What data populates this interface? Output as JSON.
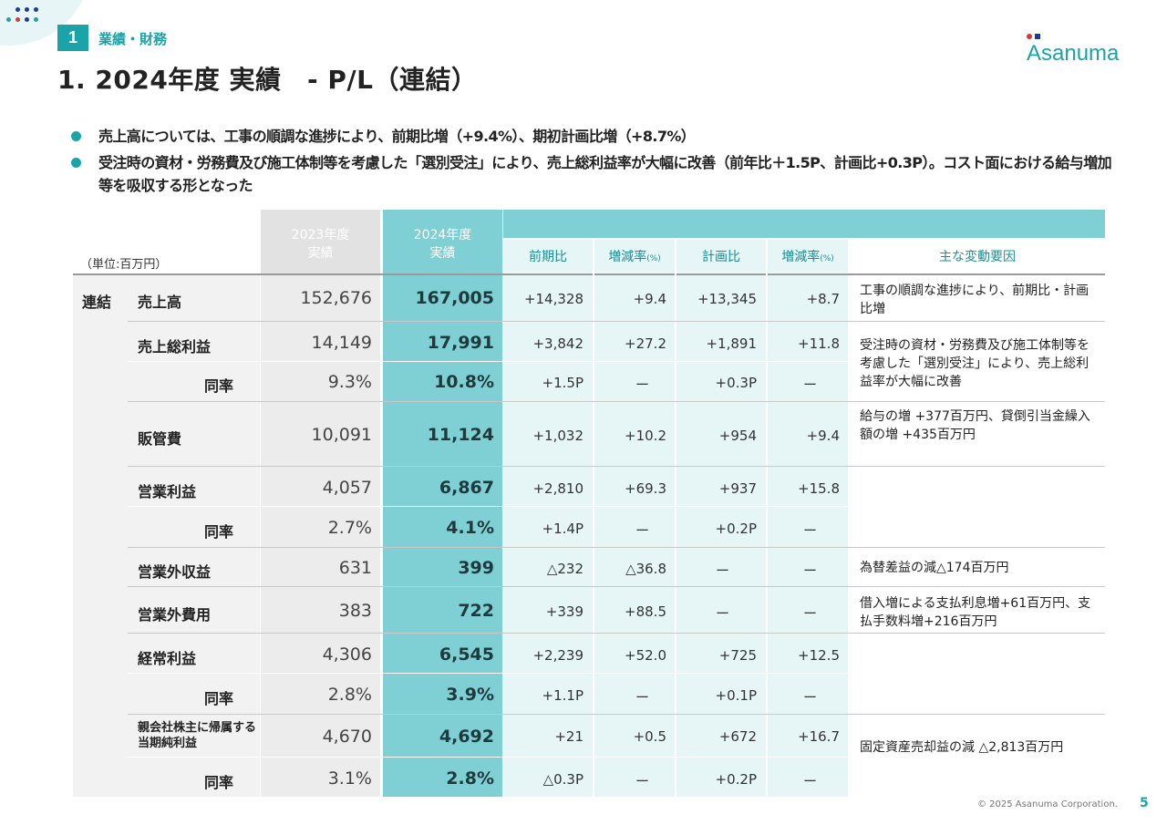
{
  "section": {
    "number": "1",
    "label": "業績・財務"
  },
  "title": "1. 2024年度 実績　- P/L（連結）",
  "logo_text": "Asanuma",
  "bullets": [
    "売上高については、工事の順調な進捗により、前期比増（+9.4%）、期初計画比増（+8.7%）",
    "受注時の資材・労務費及び施工体制等を考慮した「選別受注」により、売上総利益率が大幅に改善（前年比＋1.5P、計画比+0.3P）。コスト面における給与増加等を吸収する形となった"
  ],
  "unit": "（単位:百万円）",
  "headers": {
    "y2023": [
      "2023年度",
      "実績"
    ],
    "y2024": [
      "2024年度",
      "実績"
    ],
    "cols": [
      "前期比",
      "増減率",
      "計画比",
      "増減率"
    ],
    "pct_mark": "(%)",
    "notes": "主な変動要因"
  },
  "group_label": "連結",
  "rows": [
    {
      "label": "売上高",
      "y2023": "152,676",
      "y2024": "167,005",
      "yoy": "+14,328",
      "yoy_rate": "+9.4",
      "plan": "+13,345",
      "plan_rate": "+8.7"
    },
    {
      "label": "売上総利益",
      "y2023": "14,149",
      "y2024": "17,991",
      "yoy": "+3,842",
      "yoy_rate": "+27.2",
      "plan": "+1,891",
      "plan_rate": "+11.8"
    },
    {
      "label": "同率",
      "y2023": "9.3%",
      "y2024": "10.8%",
      "yoy": "+1.5P",
      "yoy_rate": "ー",
      "plan": "+0.3P",
      "plan_rate": "ー"
    },
    {
      "label": "販管費",
      "y2023": "10,091",
      "y2024": "11,124",
      "yoy": "+1,032",
      "yoy_rate": "+10.2",
      "plan": "+954",
      "plan_rate": "+9.4"
    },
    {
      "label": "営業利益",
      "y2023": "4,057",
      "y2024": "6,867",
      "yoy": "+2,810",
      "yoy_rate": "+69.3",
      "plan": "+937",
      "plan_rate": "+15.8"
    },
    {
      "label": "同率",
      "y2023": "2.7%",
      "y2024": "4.1%",
      "yoy": "+1.4P",
      "yoy_rate": "ー",
      "plan": "+0.2P",
      "plan_rate": "ー"
    },
    {
      "label": "営業外収益",
      "y2023": "631",
      "y2024": "399",
      "yoy": "△232",
      "yoy_rate": "△36.8",
      "plan": "ー",
      "plan_rate": "ー"
    },
    {
      "label": "営業外費用",
      "y2023": "383",
      "y2024": "722",
      "yoy": "+339",
      "yoy_rate": "+88.5",
      "plan": "ー",
      "plan_rate": "ー"
    },
    {
      "label": "経常利益",
      "y2023": "4,306",
      "y2024": "6,545",
      "yoy": "+2,239",
      "yoy_rate": "+52.0",
      "plan": "+725",
      "plan_rate": "+12.5"
    },
    {
      "label": "同率",
      "y2023": "2.8%",
      "y2024": "3.9%",
      "yoy": "+1.1P",
      "yoy_rate": "ー",
      "plan": "+0.1P",
      "plan_rate": "ー"
    },
    {
      "label": "親会社株主に帰属する当期純利益",
      "y2023": "4,670",
      "y2024": "4,692",
      "yoy": "+21",
      "yoy_rate": "+0.5",
      "plan": "+672",
      "plan_rate": "+16.7"
    },
    {
      "label": "同率",
      "y2023": "3.1%",
      "y2024": "2.8%",
      "yoy": "△0.3P",
      "yoy_rate": "ー",
      "plan": "+0.2P",
      "plan_rate": "ー"
    }
  ],
  "notes": [
    "工事の順調な進捗により、前期比・計画比増",
    "受注時の資材・労務費及び施工体制等を考慮した「選別受注」により、売上総利益率が大幅に改善",
    "給与の増 +377百万円、貸倒引当金繰入額の増 +435百万円",
    "為替差益の減△174百万円",
    "借入増による支払利息増+61百万円、支払手数料増+216百万円",
    "固定資産売却益の減 △2,813百万円"
  ],
  "footer": "© 2025 Asanuma Corporation.",
  "page_number": "5",
  "colors": {
    "teal": "#1aa3a8",
    "light_teal": "#7fd0d4",
    "pale_teal": "#e6f6f7"
  }
}
